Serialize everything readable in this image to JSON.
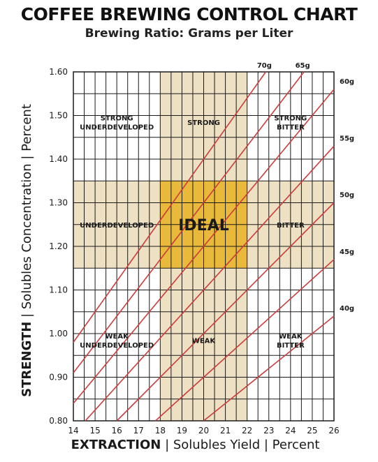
{
  "chart_data": {
    "type": "line",
    "title": "COFFEE BREWING CONTROL CHART",
    "subtitle": "Brewing Ratio: Grams per Liter",
    "xlabel": {
      "bold": "EXTRACTION",
      "rest": " | Solubles Yield | Percent"
    },
    "ylabel": {
      "bold": "STRENGTH",
      "rest": " | Solubles Concentration | Percent"
    },
    "xlim": [
      14,
      26
    ],
    "ylim": [
      0.8,
      1.6
    ],
    "x_ticks": [
      14,
      15,
      16,
      17,
      18,
      19,
      20,
      21,
      22,
      23,
      24,
      25,
      26
    ],
    "y_ticks": [
      "0.80",
      "0.90",
      "1.00",
      "1.10",
      "1.20",
      "1.30",
      "1.40",
      "1.50",
      "1.60"
    ],
    "grid": true,
    "ideal_extraction": [
      18,
      22
    ],
    "ideal_strength": [
      1.15,
      1.35
    ],
    "colors": {
      "band": "#ede0c3",
      "ideal": "#e8b93a",
      "grid": "#1a1a1a",
      "ratio_line": "#cc3c3c",
      "text": "#1a1a1a"
    },
    "series": [
      {
        "name": "70g",
        "values": [
          [
            14,
            0.98
          ],
          [
            18.3,
            1.281
          ],
          [
            22.86,
            1.6
          ]
        ]
      },
      {
        "name": "65g",
        "values": [
          [
            14,
            0.91
          ],
          [
            20.6,
            1.339
          ],
          [
            24.62,
            1.6
          ]
        ]
      },
      {
        "name": "60g",
        "values": [
          [
            14,
            0.84
          ],
          [
            22.9,
            1.374
          ],
          [
            26,
            1.56
          ]
        ]
      },
      {
        "name": "55g",
        "values": [
          [
            14.55,
            0.8
          ],
          [
            26,
            1.43
          ]
        ]
      },
      {
        "name": "50g",
        "values": [
          [
            16.0,
            0.8
          ],
          [
            26,
            1.3
          ]
        ]
      },
      {
        "name": "45g",
        "values": [
          [
            17.78,
            0.8
          ],
          [
            26,
            1.17
          ]
        ]
      },
      {
        "name": "40g",
        "values": [
          [
            20.0,
            0.8
          ],
          [
            26,
            1.04
          ]
        ]
      }
    ],
    "annotations": [
      {
        "lines": [
          "STRONG",
          "UNDERDEVELOPED"
        ],
        "x": 16.0,
        "y": 1.485
      },
      {
        "lines": [
          "STRONG"
        ],
        "x": 20.0,
        "y": 1.485
      },
      {
        "lines": [
          "STRONG",
          "BITTER"
        ],
        "x": 24.0,
        "y": 1.485
      },
      {
        "lines": [
          "UNDERDEVELOPED"
        ],
        "x": 16.0,
        "y": 1.25
      },
      {
        "lines": [
          "IDEAL"
        ],
        "x": 20.0,
        "y": 1.25,
        "big": true
      },
      {
        "lines": [
          "BITTER"
        ],
        "x": 24.0,
        "y": 1.25
      },
      {
        "lines": [
          "WEAK",
          "UNDERDEVELOPED"
        ],
        "x": 16.0,
        "y": 0.985
      },
      {
        "lines": [
          "WEAK"
        ],
        "x": 20.0,
        "y": 0.985
      },
      {
        "lines": [
          "WEAK",
          "BITTER"
        ],
        "x": 24.0,
        "y": 0.985
      }
    ]
  }
}
